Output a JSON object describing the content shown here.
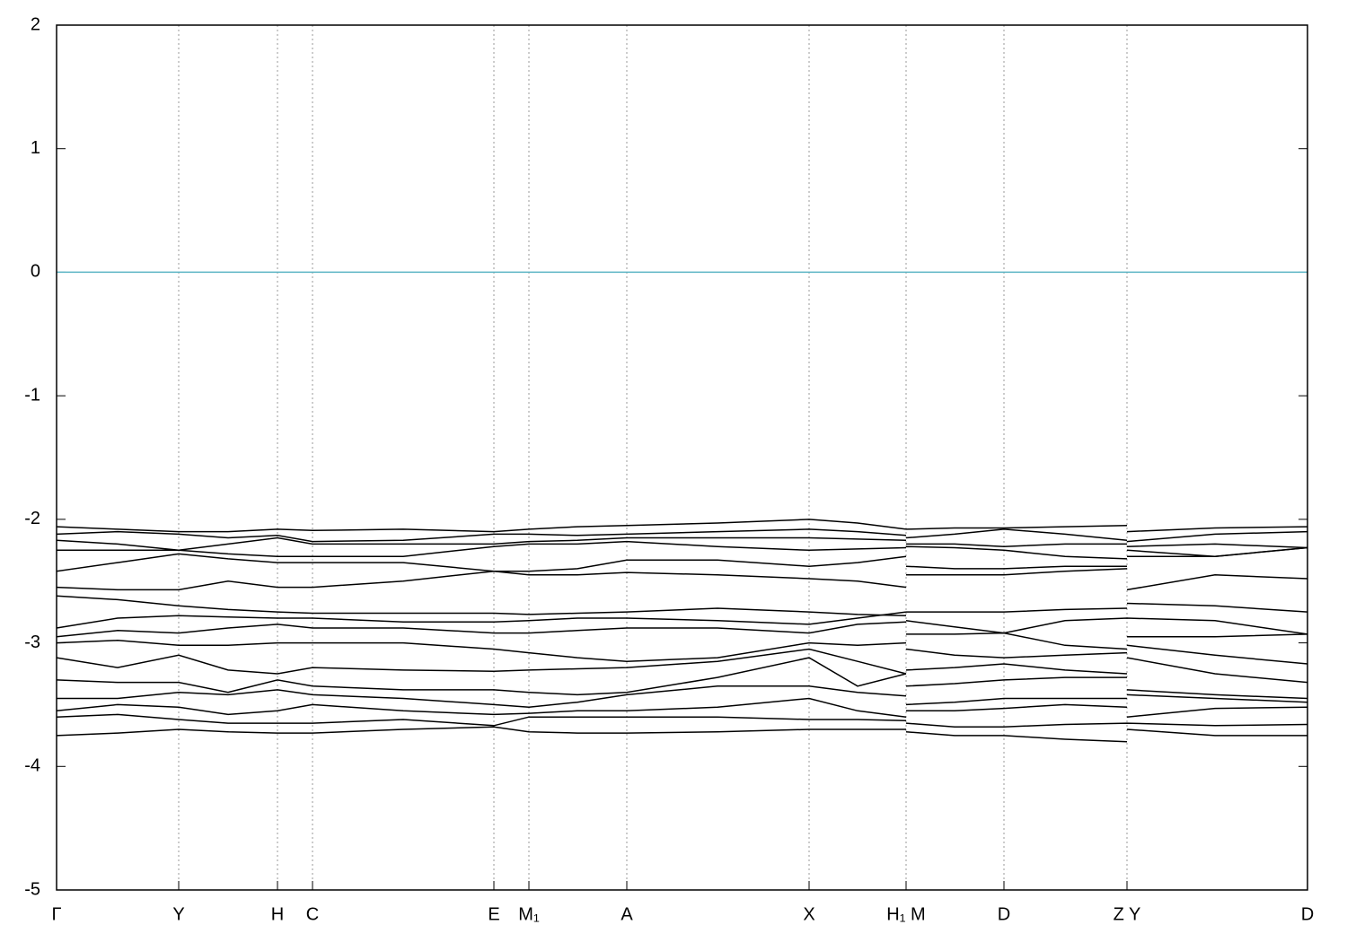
{
  "chart_data": {
    "type": "line",
    "x": [
      0,
      0.68,
      1.36,
      1.91,
      2.46,
      2.85,
      3.86,
      4.87,
      5.26,
      5.8,
      6.35,
      7.36,
      8.38,
      8.92,
      9.46,
      9.46,
      9.46,
      10.0,
      10.55,
      11.23,
      11.92,
      11.92,
      11.92,
      12.9,
      13.93
    ],
    "xlim": [
      0,
      13.93
    ],
    "xticks": [
      {
        "value": 0,
        "label": "Γ"
      },
      {
        "value": 1.36,
        "label": "Y"
      },
      {
        "value": 2.46,
        "label": "H"
      },
      {
        "value": 2.85,
        "label": "C"
      },
      {
        "value": 4.87,
        "label": "E"
      },
      {
        "value": 5.26,
        "label": "M₁"
      },
      {
        "value": 6.35,
        "label": "A"
      },
      {
        "value": 8.38,
        "label": "X"
      },
      {
        "value": 9.46,
        "label": "H₁ M"
      },
      {
        "value": 10.55,
        "label": "D"
      },
      {
        "value": 11.92,
        "label": "Z Y"
      },
      {
        "value": 13.93,
        "label": "D"
      }
    ],
    "ylim": [
      -5,
      2
    ],
    "yticks": [
      -5,
      -4,
      -3,
      -2,
      -1,
      0,
      1,
      2
    ],
    "xgrid": true,
    "reference_line": {
      "y": 0,
      "color": "#5ab4c4"
    },
    "series": [
      {
        "color": "#000000",
        "values": [
          -2.06,
          -2.08,
          -2.1,
          -2.1,
          -2.08,
          -2.09,
          -2.08,
          -2.1,
          -2.08,
          -2.06,
          -2.05,
          -2.03,
          -2.0,
          -2.03,
          -2.08,
          null,
          -2.08,
          -2.07,
          -2.07,
          -2.06,
          -2.05,
          null,
          -2.1,
          -2.07,
          -2.06
        ]
      },
      {
        "color": "#000000",
        "values": [
          -2.12,
          -2.1,
          -2.12,
          -2.15,
          -2.13,
          -2.18,
          -2.17,
          -2.12,
          -2.12,
          -2.13,
          -2.12,
          -2.1,
          -2.08,
          -2.1,
          -2.13,
          null,
          -2.15,
          -2.12,
          -2.08,
          -2.12,
          -2.17,
          null,
          -2.18,
          -2.12,
          -2.1
        ]
      },
      {
        "color": "#000000",
        "values": [
          -2.17,
          -2.2,
          -2.25,
          -2.2,
          -2.15,
          -2.2,
          -2.2,
          -2.2,
          -2.18,
          -2.17,
          -2.15,
          -2.15,
          -2.15,
          -2.16,
          -2.17,
          null,
          -2.2,
          -2.2,
          -2.22,
          -2.2,
          -2.2,
          null,
          -2.22,
          -2.2,
          -2.23
        ]
      },
      {
        "color": "#000000",
        "values": [
          -2.25,
          -2.25,
          -2.25,
          -2.28,
          -2.3,
          -2.3,
          -2.3,
          -2.22,
          -2.2,
          -2.2,
          -2.18,
          -2.22,
          -2.25,
          -2.24,
          -2.23,
          null,
          -2.22,
          -2.23,
          -2.25,
          -2.3,
          -2.32,
          null,
          -2.25,
          -2.3,
          -2.23
        ]
      },
      {
        "color": "#000000",
        "values": [
          -2.42,
          -2.35,
          -2.28,
          -2.32,
          -2.35,
          -2.35,
          -2.35,
          -2.42,
          -2.42,
          -2.4,
          -2.33,
          -2.33,
          -2.38,
          -2.35,
          -2.3,
          null,
          -2.38,
          -2.4,
          -2.4,
          -2.38,
          -2.38,
          null,
          -2.3,
          -2.3,
          -2.23
        ]
      },
      {
        "color": "#000000",
        "values": [
          -2.55,
          -2.57,
          -2.57,
          -2.5,
          -2.55,
          -2.55,
          -2.5,
          -2.42,
          -2.45,
          -2.45,
          -2.43,
          -2.45,
          -2.48,
          -2.5,
          -2.55,
          null,
          -2.45,
          -2.45,
          -2.45,
          -2.42,
          -2.4,
          null,
          -2.57,
          -2.45,
          -2.48
        ]
      },
      {
        "color": "#000000",
        "values": [
          -2.62,
          -2.65,
          -2.7,
          -2.73,
          -2.75,
          -2.76,
          -2.76,
          -2.76,
          -2.77,
          -2.76,
          -2.75,
          -2.72,
          -2.75,
          -2.77,
          -2.78,
          null,
          -2.75,
          -2.75,
          -2.75,
          -2.73,
          -2.72,
          null,
          -2.68,
          -2.7,
          -2.75
        ]
      },
      {
        "color": "#000000",
        "values": [
          -2.88,
          -2.8,
          -2.78,
          -2.79,
          -2.8,
          -2.8,
          -2.83,
          -2.83,
          -2.82,
          -2.8,
          -2.8,
          -2.82,
          -2.85,
          -2.8,
          -2.75,
          null,
          -2.82,
          -2.87,
          -2.92,
          -2.82,
          -2.8,
          null,
          -2.8,
          -2.82,
          -2.93
        ]
      },
      {
        "color": "#000000",
        "values": [
          -2.95,
          -2.9,
          -2.92,
          -2.88,
          -2.85,
          -2.88,
          -2.88,
          -2.92,
          -2.92,
          -2.9,
          -2.88,
          -2.88,
          -2.92,
          -2.85,
          -2.83,
          null,
          -2.93,
          -2.93,
          -2.92,
          -3.02,
          -3.05,
          null,
          -2.95,
          -2.95,
          -2.93
        ]
      },
      {
        "color": "#000000",
        "values": [
          -3.0,
          -2.98,
          -3.02,
          -3.02,
          -3.0,
          -3.0,
          -3.0,
          -3.05,
          -3.08,
          -3.12,
          -3.15,
          -3.12,
          -3.0,
          -3.02,
          -3.0,
          null,
          -3.05,
          -3.1,
          -3.12,
          -3.1,
          -3.08,
          null,
          -3.02,
          -3.1,
          -3.17
        ]
      },
      {
        "color": "#000000",
        "values": [
          -3.12,
          -3.2,
          -3.1,
          -3.22,
          -3.25,
          -3.2,
          -3.22,
          -3.23,
          -3.22,
          -3.21,
          -3.2,
          -3.15,
          -3.05,
          -3.15,
          -3.25,
          null,
          -3.22,
          -3.2,
          -3.17,
          -3.22,
          -3.25,
          null,
          -3.12,
          -3.25,
          -3.32
        ]
      },
      {
        "color": "#000000",
        "values": [
          -3.3,
          -3.32,
          -3.32,
          -3.4,
          -3.3,
          -3.35,
          -3.38,
          -3.38,
          -3.4,
          -3.42,
          -3.4,
          -3.28,
          -3.12,
          -3.35,
          -3.25,
          null,
          -3.35,
          -3.33,
          -3.3,
          -3.28,
          -3.28,
          null,
          -3.38,
          -3.42,
          -3.45
        ]
      },
      {
        "color": "#000000",
        "values": [
          -3.45,
          -3.45,
          -3.4,
          -3.42,
          -3.38,
          -3.42,
          -3.45,
          -3.5,
          -3.52,
          -3.48,
          -3.42,
          -3.35,
          -3.35,
          -3.4,
          -3.43,
          null,
          -3.5,
          -3.48,
          -3.45,
          -3.45,
          -3.45,
          null,
          -3.42,
          -3.45,
          -3.48
        ]
      },
      {
        "color": "#000000",
        "values": [
          -3.55,
          -3.5,
          -3.52,
          -3.58,
          -3.55,
          -3.5,
          -3.55,
          -3.58,
          -3.57,
          -3.55,
          -3.55,
          -3.52,
          -3.45,
          -3.55,
          -3.6,
          null,
          -3.55,
          -3.55,
          -3.53,
          -3.5,
          -3.52,
          null,
          -3.6,
          -3.53,
          -3.52
        ]
      },
      {
        "color": "#000000",
        "values": [
          -3.6,
          -3.58,
          -3.62,
          -3.65,
          -3.65,
          -3.65,
          -3.62,
          -3.67,
          -3.6,
          -3.6,
          -3.6,
          -3.6,
          -3.62,
          -3.62,
          -3.63,
          null,
          -3.65,
          -3.68,
          -3.68,
          -3.66,
          -3.65,
          null,
          -3.65,
          -3.67,
          -3.66
        ]
      },
      {
        "color": "#000000",
        "values": [
          -3.75,
          -3.73,
          -3.7,
          -3.72,
          -3.73,
          -3.73,
          -3.7,
          -3.68,
          -3.72,
          -3.73,
          -3.73,
          -3.72,
          -3.7,
          -3.7,
          -3.7,
          null,
          -3.72,
          -3.75,
          -3.75,
          -3.78,
          -3.8,
          null,
          -3.7,
          -3.75,
          -3.75
        ]
      }
    ]
  }
}
